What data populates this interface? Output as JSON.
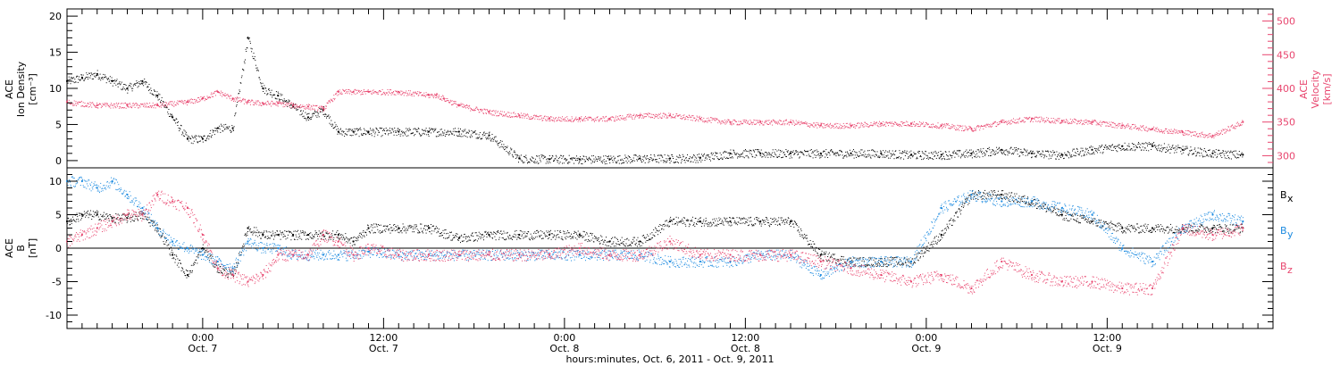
{
  "colors": {
    "density": "#000000",
    "velocity": "#e8456e",
    "bx": "#000000",
    "by": "#1d8be0",
    "bz": "#e8456e",
    "frame": "#000000"
  },
  "chart_data": [
    {
      "type": "scatter",
      "panel": "top",
      "ylabel_lines": [
        "ACE",
        "Ion Density",
        "[cm⁻³]"
      ],
      "y2label_lines": [
        "ACE",
        "Velocity",
        "[km/s]"
      ],
      "ylim": [
        -1,
        21
      ],
      "y2lim": [
        282,
        518
      ],
      "yticks": [
        0,
        5,
        10,
        15,
        20
      ],
      "y2ticks": [
        300,
        350,
        400,
        450,
        500
      ],
      "xlim_hours": [
        0,
        80
      ],
      "series": [
        {
          "key": "density",
          "axis": "left",
          "x": [
            0,
            1,
            2,
            3,
            4,
            5,
            6,
            7,
            8,
            9,
            10,
            11,
            12,
            13,
            14,
            15,
            16,
            17,
            18,
            19,
            20,
            22,
            24,
            26,
            28,
            30,
            32,
            34,
            36,
            38,
            40,
            42,
            44,
            46,
            48,
            50,
            52,
            54,
            56,
            58,
            60,
            62,
            64,
            66,
            68,
            70,
            72,
            74,
            76,
            78
          ],
          "y": [
            11,
            11.5,
            12,
            11,
            10,
            11,
            9,
            6,
            3,
            3,
            4.5,
            4.5,
            17,
            10,
            9,
            7.5,
            6,
            7,
            4,
            4,
            4,
            4,
            4,
            4,
            3.5,
            0.3,
            0.2,
            0.2,
            0.2,
            0.3,
            0.3,
            0.4,
            1,
            1,
            1,
            1,
            1,
            1,
            0.8,
            0.8,
            1,
            1.5,
            1,
            0.8,
            1.5,
            2,
            2,
            1.5,
            1,
            0.8
          ]
        },
        {
          "key": "velocity",
          "axis": "right",
          "x": [
            0,
            2,
            4,
            6,
            8,
            9,
            10,
            11,
            12,
            13,
            14,
            15,
            16,
            17,
            18,
            19,
            20,
            22,
            24,
            24.5,
            25,
            26,
            28,
            30,
            32,
            34,
            36,
            38,
            40,
            42,
            44,
            46,
            48,
            50,
            52,
            54,
            56,
            58,
            60,
            62,
            64,
            66,
            68,
            70,
            72,
            74,
            76,
            78
          ],
          "y": [
            380,
            375,
            375,
            375,
            380,
            385,
            395,
            385,
            380,
            378,
            378,
            375,
            373,
            370,
            395,
            395,
            395,
            395,
            390,
            390,
            385,
            375,
            365,
            360,
            355,
            355,
            355,
            360,
            360,
            355,
            350,
            350,
            350,
            345,
            345,
            348,
            348,
            345,
            340,
            350,
            355,
            352,
            350,
            345,
            340,
            335,
            330,
            350
          ]
        }
      ]
    },
    {
      "type": "scatter",
      "panel": "bottom",
      "ylabel_lines": [
        "ACE",
        "B",
        "[nT]"
      ],
      "ylim": [
        -12,
        12
      ],
      "yticks": [
        -10,
        -5,
        0,
        5,
        10
      ],
      "xlim_hours": [
        0,
        80
      ],
      "series": [
        {
          "key": "bx",
          "name": "Bx",
          "x": [
            0,
            1,
            2,
            3,
            4,
            5,
            6,
            7,
            8,
            9,
            10,
            11,
            12,
            13,
            14,
            15,
            16,
            17,
            18,
            19,
            20,
            22,
            24,
            26,
            28,
            30,
            32,
            34,
            36,
            38,
            40,
            42,
            44,
            46,
            48,
            50,
            52,
            54,
            56,
            58,
            60,
            62,
            64,
            66,
            68,
            70,
            72,
            74,
            76,
            78
          ],
          "y": [
            4,
            5,
            5,
            4.5,
            4.5,
            5,
            3,
            -1,
            -4,
            0,
            -3,
            -4,
            3,
            2,
            2,
            2,
            2,
            2,
            2,
            1,
            3,
            3,
            3,
            1.5,
            2,
            2,
            2,
            2,
            1,
            1,
            4,
            4,
            4,
            4,
            4,
            -1,
            -2,
            -2,
            -2,
            2,
            8,
            8,
            7,
            5,
            4,
            3,
            3,
            3,
            3,
            3
          ]
        },
        {
          "key": "by",
          "name": "By",
          "x": [
            0,
            1,
            2,
            3,
            4,
            5,
            6,
            7,
            8,
            9,
            10,
            11,
            12,
            13,
            14,
            15,
            16,
            17,
            18,
            19,
            20,
            22,
            24,
            26,
            28,
            30,
            32,
            34,
            36,
            38,
            40,
            42,
            44,
            46,
            48,
            50,
            52,
            54,
            56,
            58,
            60,
            62,
            64,
            66,
            68,
            70,
            72,
            74,
            76,
            78
          ],
          "y": [
            10,
            10,
            9,
            10,
            8,
            6,
            3,
            1,
            0,
            -1,
            -2,
            -3,
            1,
            0,
            0,
            -1,
            -1,
            -1,
            -1,
            -1,
            -0.5,
            -1,
            -1,
            -1,
            -1,
            -1,
            -1,
            -1,
            -1,
            -1,
            -2,
            -2,
            -2,
            -1,
            -1,
            -4,
            -2,
            -2,
            -2,
            6,
            8,
            7,
            7,
            6,
            5,
            0,
            -2,
            3,
            5,
            4
          ]
        },
        {
          "key": "bz",
          "name": "Bz",
          "x": [
            0,
            1,
            2,
            3,
            4,
            5,
            6,
            7,
            8,
            9,
            10,
            11,
            12,
            13,
            14,
            15,
            16,
            17,
            18,
            19,
            20,
            22,
            24,
            26,
            28,
            30,
            32,
            34,
            36,
            38,
            40,
            42,
            44,
            46,
            48,
            50,
            52,
            54,
            56,
            58,
            60,
            62,
            64,
            66,
            68,
            70,
            72,
            74,
            76,
            78
          ],
          "y": [
            1,
            2,
            3,
            4,
            5,
            5,
            8,
            7,
            6,
            2,
            -3,
            -4,
            -5,
            -4,
            -1,
            -1,
            -1,
            2,
            1,
            -1,
            0,
            -1,
            -1,
            -1,
            -1,
            -1,
            -1,
            0,
            -1,
            -1,
            1,
            -1,
            -1,
            -1,
            -1,
            -2,
            -3,
            -4,
            -5,
            -4,
            -6,
            -2,
            -4,
            -5,
            -5,
            -6,
            -6,
            3,
            2,
            3
          ]
        }
      ],
      "legend_labels": [
        {
          "key": "bx",
          "main": "B",
          "sub": "x"
        },
        {
          "key": "by",
          "main": "B",
          "sub": "y"
        },
        {
          "key": "bz",
          "main": "B",
          "sub": "z"
        }
      ]
    }
  ],
  "x_axis": {
    "major_ticks": [
      {
        "hour": 9,
        "time": "0:00",
        "date": "Oct. 7"
      },
      {
        "hour": 21,
        "time": "12:00",
        "date": "Oct. 7"
      },
      {
        "hour": 33,
        "time": "0:00",
        "date": "Oct. 8"
      },
      {
        "hour": 45,
        "time": "12:00",
        "date": "Oct. 8"
      },
      {
        "hour": 57,
        "time": "0:00",
        "date": "Oct. 9"
      },
      {
        "hour": 69,
        "time": "12:00",
        "date": "Oct. 9"
      }
    ],
    "xlabel": "hours:minutes, Oct.  6, 2011 - Oct.  9, 2011"
  }
}
